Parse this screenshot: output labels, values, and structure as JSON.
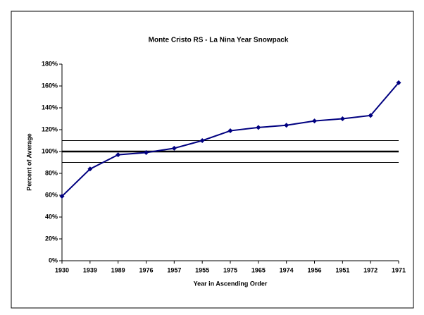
{
  "chart_data": {
    "type": "line",
    "title": "Monte Cristo RS - La Nina Year Snowpack",
    "x_label": "Year in Ascending Order",
    "y_label": "Percent of Average",
    "categories": [
      "1930",
      "1939",
      "1989",
      "1976",
      "1957",
      "1955",
      "1975",
      "1965",
      "1974",
      "1956",
      "1951",
      "1972",
      "1971"
    ],
    "series": [
      {
        "name": "Snowpack",
        "color": "#000080",
        "values": [
          59,
          84,
          97,
          99,
          103,
          110,
          119,
          122,
          124,
          128,
          130,
          133,
          163
        ]
      }
    ],
    "ylim": [
      0,
      180
    ],
    "yticks": [
      {
        "value": 0,
        "label": "0%"
      },
      {
        "value": 20,
        "label": "20%"
      },
      {
        "value": 40,
        "label": "40%"
      },
      {
        "value": 60,
        "label": "60%"
      },
      {
        "value": 80,
        "label": "80%"
      },
      {
        "value": 100,
        "label": "100%"
      },
      {
        "value": 120,
        "label": "120%"
      },
      {
        "value": 140,
        "label": "140%"
      },
      {
        "value": 160,
        "label": "160%"
      },
      {
        "value": 180,
        "label": "180%"
      }
    ],
    "reference_lines": [
      {
        "value": 110,
        "thick": false
      },
      {
        "value": 100,
        "thick": true
      },
      {
        "value": 90,
        "thick": false
      }
    ],
    "grid": false
  }
}
